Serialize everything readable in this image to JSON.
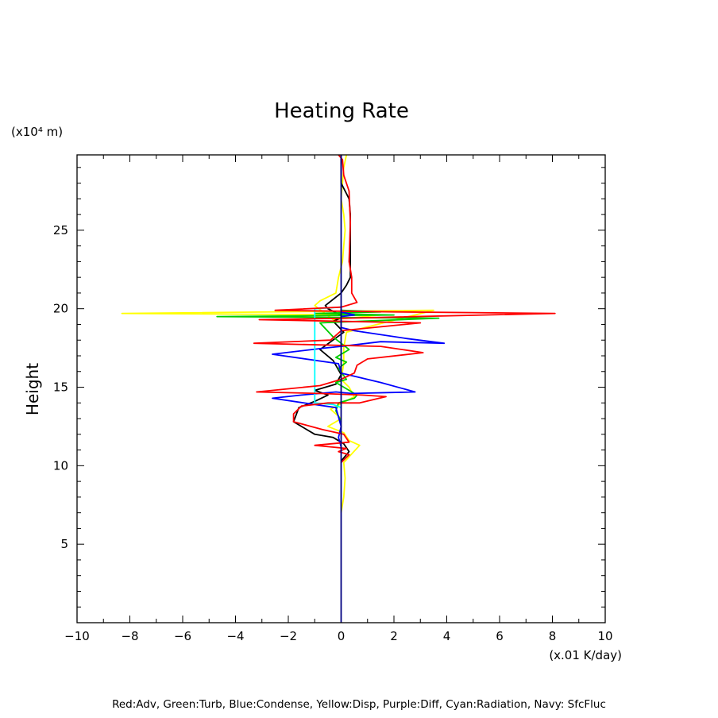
{
  "chart_data": {
    "type": "line",
    "title": "Heating Rate",
    "xlabel": "(x.01 K/day)",
    "ylabel": "Height",
    "yunit": "(x10⁴ m)",
    "xlim": [
      -10,
      10
    ],
    "ylim": [
      0,
      29.8
    ],
    "xticks": [
      -10,
      -8,
      -6,
      -4,
      -2,
      0,
      2,
      4,
      6,
      8,
      10
    ],
    "yticks": [
      5,
      10,
      15,
      20,
      25
    ],
    "grid": false,
    "legend": "Red:Adv, Green:Turb, Blue:Condense, Yellow:Disp, Purple:Diff, Cyan:Radiation, Navy: SfcFluc",
    "series": [
      {
        "color": "#ffff00",
        "points": [
          [
            0,
            7.0
          ],
          [
            0.1,
            8.0
          ],
          [
            0.15,
            9.2
          ],
          [
            0.1,
            10.2
          ],
          [
            0.7,
            11.3
          ],
          [
            0.3,
            11.6
          ],
          [
            0.1,
            12.1
          ],
          [
            -0.5,
            12.5
          ],
          [
            0.0,
            13.0
          ],
          [
            -0.4,
            13.6
          ],
          [
            0.5,
            14.4
          ],
          [
            0.3,
            15.0
          ],
          [
            0.0,
            15.5
          ],
          [
            0.1,
            16.5
          ],
          [
            0.1,
            17.5
          ],
          [
            0.2,
            18.5
          ],
          [
            3.5,
            19.9
          ],
          [
            -8.3,
            19.7
          ],
          [
            1.5,
            19.6
          ],
          [
            -0.3,
            19.3
          ],
          [
            -1.0,
            20.2
          ],
          [
            -0.8,
            20.5
          ],
          [
            -0.2,
            21.0
          ],
          [
            -0.1,
            22.0
          ],
          [
            0.05,
            23.0
          ],
          [
            0.1,
            24.0
          ],
          [
            0.15,
            25.0
          ],
          [
            0.1,
            26.0
          ],
          [
            0.0,
            27.0
          ],
          [
            0.05,
            28.0
          ],
          [
            0.1,
            29.0
          ],
          [
            0.2,
            29.8
          ]
        ]
      },
      {
        "color": "#000000",
        "points": [
          [
            0,
            10.3
          ],
          [
            0.3,
            10.9
          ],
          [
            0.1,
            11.4
          ],
          [
            -0.3,
            11.8
          ],
          [
            -1.0,
            12.0
          ],
          [
            -1.8,
            12.8
          ],
          [
            -1.6,
            13.7
          ],
          [
            -1.0,
            14.1
          ],
          [
            -0.5,
            14.5
          ],
          [
            -1.0,
            14.8
          ],
          [
            -0.2,
            15.2
          ],
          [
            0.0,
            15.8
          ],
          [
            -0.3,
            16.7
          ],
          [
            -0.8,
            17.4
          ],
          [
            0.1,
            18.5
          ],
          [
            -0.3,
            19.2
          ],
          [
            0.1,
            19.5
          ],
          [
            -0.5,
            20.0
          ],
          [
            -0.6,
            20.2
          ],
          [
            0.0,
            21.0
          ],
          [
            0.2,
            21.5
          ],
          [
            0.35,
            22.0
          ],
          [
            0.35,
            26.0
          ],
          [
            0.3,
            27.0
          ],
          [
            0.0,
            28.0
          ],
          [
            0.0,
            29.8
          ]
        ]
      },
      {
        "color": "#00cc00",
        "points": [
          [
            0,
            12.8
          ],
          [
            -0.2,
            13.5
          ],
          [
            -0.1,
            14.0
          ],
          [
            0.5,
            14.3
          ],
          [
            0.6,
            14.5
          ],
          [
            -0.2,
            15.3
          ],
          [
            0.2,
            15.5
          ],
          [
            -0.1,
            16.2
          ],
          [
            0.2,
            16.6
          ],
          [
            -0.2,
            16.9
          ],
          [
            0.3,
            17.4
          ],
          [
            0.0,
            17.8
          ],
          [
            -0.3,
            18.2
          ],
          [
            -0.8,
            19.1
          ],
          [
            3.7,
            19.4
          ],
          [
            -4.7,
            19.5
          ],
          [
            2.0,
            19.6
          ],
          [
            -1.0,
            19.7
          ],
          [
            1.5,
            19.8
          ],
          [
            0,
            19.9
          ]
        ]
      },
      {
        "color": "#0000ff",
        "points": [
          [
            0,
            11.2
          ],
          [
            -0.1,
            11.8
          ],
          [
            0.0,
            12.5
          ],
          [
            -0.2,
            13.7
          ],
          [
            -2.6,
            14.3
          ],
          [
            -1.5,
            14.5
          ],
          [
            -0.2,
            14.7
          ],
          [
            0.4,
            14.6
          ],
          [
            2.8,
            14.7
          ],
          [
            1.5,
            15.3
          ],
          [
            0.0,
            15.9
          ],
          [
            -0.1,
            16.5
          ],
          [
            -2.6,
            17.1
          ],
          [
            -0.6,
            17.5
          ],
          [
            0.0,
            17.6
          ],
          [
            1.5,
            17.9
          ],
          [
            3.9,
            17.8
          ],
          [
            2.5,
            18.1
          ],
          [
            0.5,
            18.6
          ],
          [
            0.0,
            18.8
          ],
          [
            0.0,
            19.5
          ],
          [
            0.5,
            19.6
          ],
          [
            0.0,
            19.8
          ],
          [
            0.0,
            20.0
          ]
        ]
      },
      {
        "color": "#00ffff",
        "points": [
          [
            0,
            13.7
          ],
          [
            -0.3,
            13.9
          ],
          [
            -1.0,
            14.0
          ],
          [
            -1.0,
            20.0
          ],
          [
            0,
            20.1
          ]
        ]
      },
      {
        "color": "#ff0000",
        "points": [
          [
            0,
            10.2
          ],
          [
            0.3,
            10.7
          ],
          [
            -0.1,
            10.9
          ],
          [
            0.2,
            11.1
          ],
          [
            -1.0,
            11.3
          ],
          [
            0.3,
            11.5
          ],
          [
            0.1,
            12.0
          ],
          [
            -0.7,
            12.3
          ],
          [
            -1.8,
            12.8
          ],
          [
            -1.8,
            13.3
          ],
          [
            -1.5,
            13.8
          ],
          [
            -0.5,
            14.0
          ],
          [
            0.7,
            14.0
          ],
          [
            1.7,
            14.4
          ],
          [
            0.8,
            14.5
          ],
          [
            -0.8,
            14.6
          ],
          [
            -3.2,
            14.7
          ],
          [
            -0.8,
            15.1
          ],
          [
            0.0,
            15.5
          ],
          [
            0.5,
            15.9
          ],
          [
            0.6,
            16.4
          ],
          [
            1.0,
            16.8
          ],
          [
            3.1,
            17.2
          ],
          [
            1.5,
            17.6
          ],
          [
            -3.3,
            17.8
          ],
          [
            -0.4,
            18.0
          ],
          [
            0.0,
            18.6
          ],
          [
            3.0,
            19.1
          ],
          [
            -3.1,
            19.3
          ],
          [
            0.2,
            19.4
          ],
          [
            8.1,
            19.7
          ],
          [
            2.0,
            19.8
          ],
          [
            -2.5,
            19.9
          ],
          [
            0.0,
            20.1
          ],
          [
            0.6,
            20.4
          ],
          [
            0.4,
            21.0
          ],
          [
            0.4,
            22.0
          ],
          [
            0.3,
            23.0
          ],
          [
            0.35,
            25.5
          ],
          [
            0.3,
            27.5
          ],
          [
            0.1,
            28.5
          ],
          [
            0.05,
            29.5
          ],
          [
            -0.1,
            29.8
          ]
        ]
      },
      {
        "color": "#000080",
        "points": [
          [
            0,
            0
          ],
          [
            0,
            29.8
          ]
        ]
      }
    ]
  }
}
